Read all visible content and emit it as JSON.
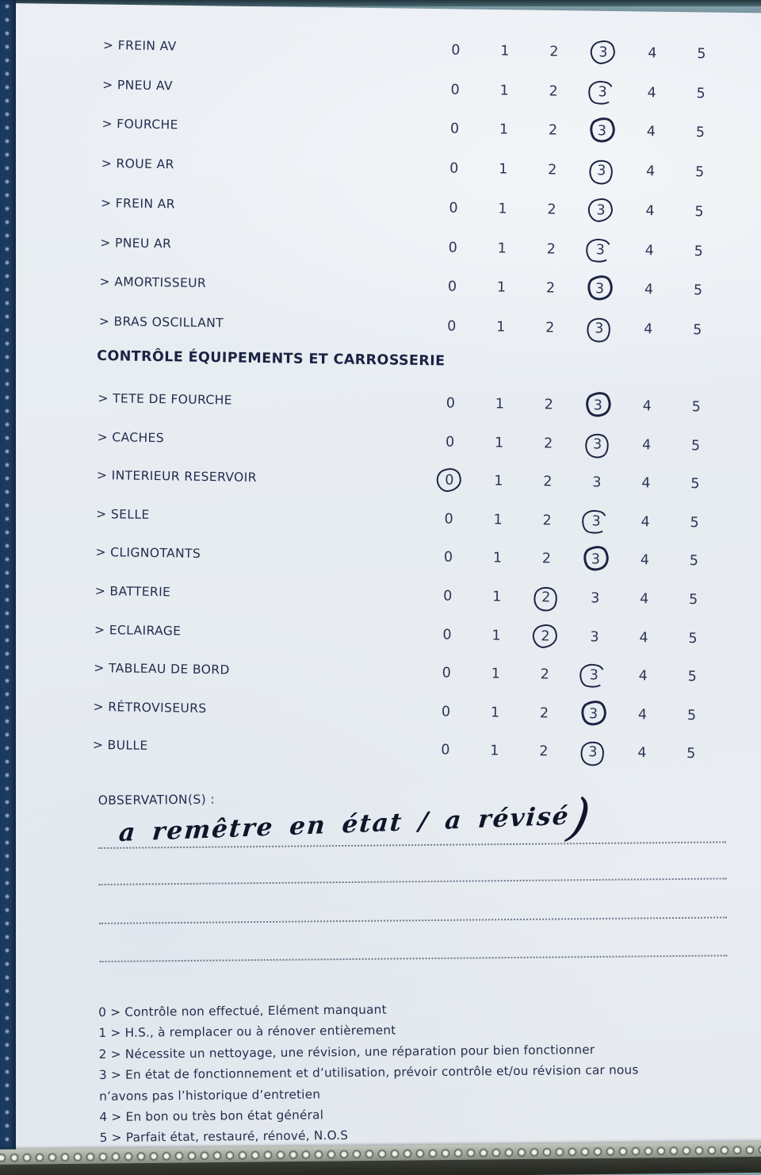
{
  "document": {
    "section_title": "CONTRÔLE ÉQUIPEMENTS ET CARROSSERIE",
    "scale": [
      "0",
      "1",
      "2",
      "3",
      "4",
      "5"
    ],
    "part1_rows": [
      {
        "label": "> FREIN AV",
        "circled": 3
      },
      {
        "label": "> PNEU AV",
        "circled": 3
      },
      {
        "label": "> FOURCHE",
        "circled": 3
      },
      {
        "label": "> ROUE AR",
        "circled": 3
      },
      {
        "label": "> FREIN AR",
        "circled": 3
      },
      {
        "label": "> PNEU AR",
        "circled": 3
      },
      {
        "label": "> AMORTISSEUR",
        "circled": 3
      },
      {
        "label": "> BRAS OSCILLANT",
        "circled": 3
      }
    ],
    "part2_rows": [
      {
        "label": "> TETE DE FOURCHE",
        "circled": 3
      },
      {
        "label": "> CACHES",
        "circled": 3
      },
      {
        "label": "> INTERIEUR RESERVOIR",
        "circled": 0
      },
      {
        "label": "> SELLE",
        "circled": 3
      },
      {
        "label": "> CLIGNOTANTS",
        "circled": 3
      },
      {
        "label": "> BATTERIE",
        "circled": 2
      },
      {
        "label": "> ECLAIRAGE",
        "circled": 2
      },
      {
        "label": "> TABLEAU DE BORD",
        "circled": 3
      },
      {
        "label": "> RÉTROVISEURS",
        "circled": 3
      },
      {
        "label": "> BULLE",
        "circled": 3
      }
    ],
    "observations": {
      "label": "OBSERVATION(S) :",
      "handwriting": "a remêtre en état / a révisé",
      "handwriting_suffix": ")"
    },
    "legend_lines": [
      "0 > Contrôle non effectué, Elément manquant",
      "1 > H.S., à remplacer ou à rénover entièrement",
      "2 > Nécessite un nettoyage, une révision, une réparation pour bien fonctionner",
      "3 > En état de fonctionnement et d’utilisation, prévoir contrôle et/ou révision car nous",
      "n’avons pas l’historique d’entretien",
      "4 > En bon ou très bon état général",
      "5 > Parfait état, restauré, rénové, N.O.S"
    ],
    "colors": {
      "paper": "#e9edf2",
      "ink": "#232c4e",
      "hand_ink": "#10152a",
      "background_teal": "#86a3ad",
      "binding_navy": "#1b3a5e"
    }
  }
}
